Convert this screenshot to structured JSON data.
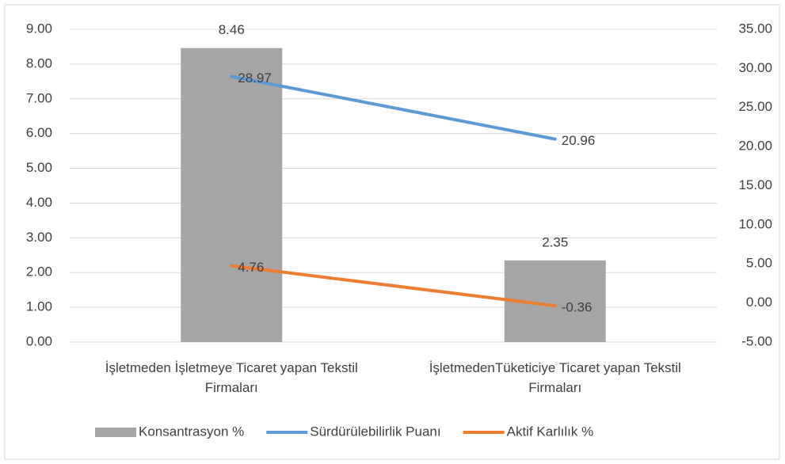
{
  "chart_data": {
    "type": "bar_line_combo",
    "categories": [
      "İşletmeden İşletmeye Ticaret yapan Tekstil Firmaları",
      "İşletmedenTüketiciye Ticaret yapan Tekstil Firmaları"
    ],
    "series": [
      {
        "name": "Konsantrasyon %",
        "type": "bar",
        "color": "#a5a5a5",
        "values": [
          8.46,
          2.35
        ]
      },
      {
        "name": "Sürdürülebilirlik Puanı",
        "type": "line",
        "axis": "y2",
        "color": "#5b9bd5",
        "values": [
          28.97,
          20.96
        ]
      },
      {
        "name": "Aktif Karlılık %",
        "type": "line",
        "axis": "y2",
        "color": "#ed7d31",
        "values": [
          4.76,
          -0.36
        ]
      }
    ],
    "ylim": [
      0,
      9
    ],
    "yticks": [
      {
        "value": 0,
        "label": "0.00"
      },
      {
        "value": 1,
        "label": "1.00"
      },
      {
        "value": 2,
        "label": "2.00"
      },
      {
        "value": 3,
        "label": "3.00"
      },
      {
        "value": 4,
        "label": "4.00"
      },
      {
        "value": 5,
        "label": "5.00"
      },
      {
        "value": 6,
        "label": "6.00"
      },
      {
        "value": 7,
        "label": "7.00"
      },
      {
        "value": 8,
        "label": "8.00"
      },
      {
        "value": 9,
        "label": "9.00"
      }
    ],
    "y2lim": [
      -5,
      35
    ],
    "y2ticks": [
      {
        "value": -5,
        "label": "-5.00"
      },
      {
        "value": 0,
        "label": "0.00"
      },
      {
        "value": 5,
        "label": "5.00"
      },
      {
        "value": 10,
        "label": "10.00"
      },
      {
        "value": 15,
        "label": "15.00"
      },
      {
        "value": 20,
        "label": "20.00"
      },
      {
        "value": 25,
        "label": "25.00"
      },
      {
        "value": 30,
        "label": "30.00"
      },
      {
        "value": 35,
        "label": "35.00"
      }
    ],
    "grid": true,
    "legend": "bottom"
  }
}
